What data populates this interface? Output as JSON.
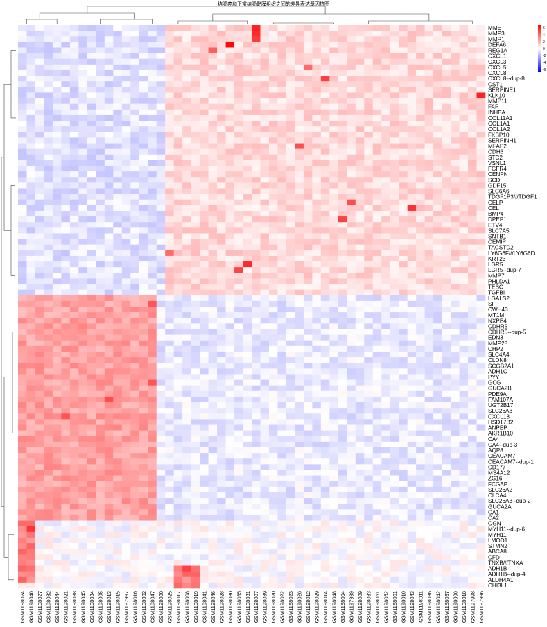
{
  "title": "结肠癌和正常结肠黏膜组织之间的差异表达基因热图",
  "legend": {
    "ticks": [
      "6",
      "4",
      "2",
      "0",
      "-2",
      "-4",
      "-6"
    ],
    "colors": {
      "low": "#0000ff",
      "mid": "#ffffff",
      "high": "#ff0000"
    }
  },
  "chart_data": {
    "type": "heatmap",
    "title": "结肠癌和正常结肠黏膜组织之间的差异表达基因热图",
    "color_scale": {
      "min": -6,
      "max": 6,
      "low": "#0000ff",
      "mid": "#ffffff",
      "high": "#ff0000"
    },
    "rows": [
      "MME",
      "MMP3",
      "MMP1",
      "DEFA6",
      "REG1A",
      "CXCL1",
      "CXCL3",
      "CXCL5",
      "CXCL8",
      "CXCL8--dup-8",
      "CST1",
      "SERPINE1",
      "KLK10",
      "MMP11",
      "FAP",
      "INHBA",
      "COL11A1",
      "COL1A1",
      "COL1A2",
      "FKBP10",
      "SERPINH1",
      "MFAP2",
      "CDH3",
      "STC2",
      "VSNL1",
      "FGFR4",
      "CENPN",
      "SCD",
      "GDF15",
      "SLC6A6",
      "TDGF1P3///TDGF1",
      "CELP",
      "CEL",
      "BMP4",
      "DPEP1",
      "ETV4",
      "SLC7A5",
      "SNTB1",
      "CEMIP",
      "TACSTD2",
      "LY6G6F///LY6G6D",
      "KRT23",
      "LGR5",
      "LGR5--dup-7",
      "MMP7",
      "PHLDA1",
      "TESC",
      "TGFBI",
      "LGALS2",
      "SI",
      "CWH43",
      "MT1M",
      "NXPE4",
      "CDHR5",
      "CDHR5--dup-5",
      "EDN3",
      "MMP28",
      "CHP2",
      "SLC4A4",
      "CLDN8",
      "SCGB2A1",
      "ADH1C",
      "PYY",
      "GCG",
      "GUCA2B",
      "PDE9A",
      "FAM107A",
      "UGT2B17",
      "SLC26A3",
      "CXCL13",
      "HSD17B2",
      "ANPEP",
      "AKR1B10",
      "CA4",
      "CA4--dup-3",
      "AQP8",
      "CEACAM7",
      "CEACAM7--dup-1",
      "CD177",
      "MS4A12",
      "ZG16",
      "FCGBP",
      "SLC26A2",
      "CLCA4",
      "SLC26A3--dup-2",
      "GUCA2A",
      "CA1",
      "CA2",
      "OGN",
      "MYH11--dup-6",
      "MYH11",
      "LMOD1",
      "STMN2",
      "ABCA8",
      "CFD",
      "TNXB///TNXA",
      "ADH1B",
      "ADH1B--dup-4",
      "ALDH4A1",
      "CHI3L1"
    ],
    "columns": [
      "GSM1198024",
      "GSM1198040",
      "GSM1198027",
      "GSM1198032",
      "GSM1198044",
      "GSM1198021",
      "GSM1198038",
      "GSM1198045",
      "GSM1198034",
      "GSM1198005",
      "GSM1198013",
      "GSM1198015",
      "GSM1197997",
      "GSM1198016",
      "GSM1198002",
      "GSM1198047",
      "GSM1198000",
      "GSM1198025",
      "GSM1198017",
      "GSM1198008",
      "GSM1198019",
      "GSM1198041",
      "GSM1198046",
      "GSM1198028",
      "GSM1198030",
      "GSM1198035",
      "GSM1198031",
      "GSM1198007",
      "GSM1198039",
      "GSM1198020",
      "GSM1198022",
      "GSM1198023",
      "GSM1198026",
      "GSM1198012",
      "GSM1198029",
      "GSM1198014",
      "GSM1198048",
      "GSM1198004",
      "GSM1197999",
      "GSM1198009",
      "GSM1198033",
      "GSM1198051",
      "GSM1198052",
      "GSM1198001",
      "GSM1198010",
      "GSM1198043",
      "GSM1198011",
      "GSM1198036",
      "GSM1198042",
      "GSM1198037",
      "GSM1198006",
      "GSM1198018",
      "GSM1197998",
      "GSM1197996"
    ],
    "blocks": [
      {
        "rows": "MME..TGFBI",
        "columns": "GSM1198024..GSM1198000",
        "typical_value": -0.7
      },
      {
        "rows": "MME..TGFBI",
        "columns": "GSM1198025..GSM1197996",
        "typical_value": 0.9
      },
      {
        "rows": "LGALS2..CA2",
        "columns": "GSM1198024..GSM1198047",
        "typical_value": 2.2
      },
      {
        "rows": "LGALS2..CA2",
        "columns": "GSM1198000..GSM1197996",
        "typical_value": -0.5
      },
      {
        "rows": "OGN..ALDH4A1",
        "columns": "GSM1198024..GSM1198040",
        "typical_value": 3.0
      },
      {
        "rows": "ADH1B..CHI3L1",
        "columns": "GSM1198017..GSM1198019",
        "typical_value": 3.0
      }
    ],
    "hotspots": [
      {
        "row": "MME",
        "column": "GSM1198007",
        "value": 5.2
      },
      {
        "row": "MMP3",
        "column": "GSM1198007",
        "value": 5.0
      },
      {
        "row": "MMP1",
        "column": "GSM1198007",
        "value": 4.6
      },
      {
        "row": "DEFA6",
        "column": "GSM1198030",
        "value": 5.8
      },
      {
        "row": "REG1A",
        "column": "GSM1198046",
        "value": 3.8
      },
      {
        "row": "CXCL5",
        "column": "GSM1198012",
        "value": 3.5
      },
      {
        "row": "CXCL8--dup-8",
        "column": "GSM1198014",
        "value": 4.5
      },
      {
        "row": "KLK10",
        "column": "GSM1197996",
        "value": 5.2
      },
      {
        "row": "MFAP2",
        "column": "GSM1198026",
        "value": 4.2
      },
      {
        "row": "CELP",
        "column": "GSM1197999",
        "value": 4.2
      },
      {
        "row": "CEL",
        "column": "GSM1198043",
        "value": 4.8
      },
      {
        "row": "DPEP1",
        "column": "GSM1198004",
        "value": 4.5
      },
      {
        "row": "LGR5",
        "column": "GSM1198031",
        "value": 5.0
      },
      {
        "row": "LGR5--dup-7",
        "column": "GSM1198035",
        "value": 4.4
      },
      {
        "row": "LY6G6F///LY6G6D",
        "column": "GSM1198025",
        "value": 3.5
      },
      {
        "row": "SI",
        "column": "GSM1198047",
        "value": 4.0
      },
      {
        "row": "FAM107A",
        "column": "GSM1198013",
        "value": 4.2
      },
      {
        "row": "CXCL13",
        "column": "GSM1198021",
        "value": 4.0
      },
      {
        "row": "GCG",
        "column": "GSM1198047",
        "value": 4.0
      },
      {
        "row": "MYH11--dup-6",
        "column": "GSM1198040",
        "value": 4.8
      },
      {
        "row": "ADH1B",
        "column": "GSM1198008",
        "value": 4.5
      }
    ]
  }
}
